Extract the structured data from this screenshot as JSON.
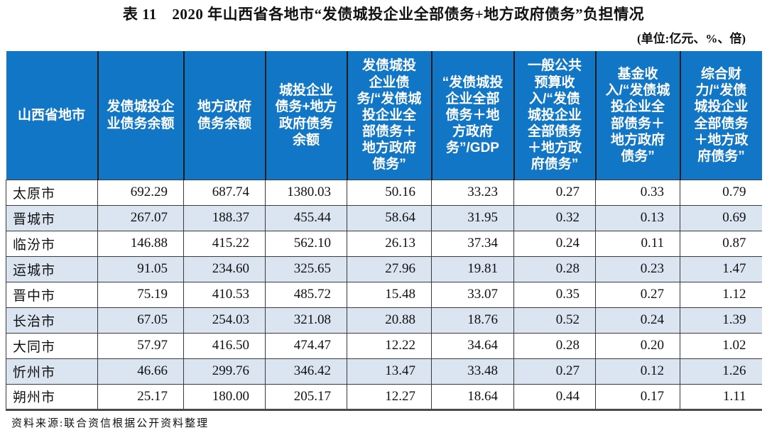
{
  "page": {
    "title": "表 11　2020 年山西省各地市“发债城投企业全部债务+地方政府债务”负担情况",
    "units_note": "(单位:亿元、%、倍)",
    "source_note": "资料来源:联合资信根据公开资料整理"
  },
  "colors": {
    "header_bg": "#1276c7",
    "header_text": "#ffffff",
    "row_alt_bg": "#dbe5f1",
    "grid_line": "#3a3a3a"
  },
  "table": {
    "columns": [
      "山西省地市",
      "发债城投企业债务余额",
      "地方政府债务余额",
      "城投企业债务+地方政府债务余额",
      "发债城投企业债务/“发债城投企业全部债务＋地方政府债务”",
      "“发债城投企业全部债务＋地方政府务”/GDP",
      "一般公共预算收入/“发债城投企业全部债务＋地方政府债务”",
      "基金收入/“发债城投企业全部债务＋地方政府债务”",
      "综合财力/“发债城投企业全部债务＋地方政府债务”"
    ],
    "rows": [
      [
        "太原市",
        "692.29",
        "687.74",
        "1380.03",
        "50.16",
        "33.23",
        "0.27",
        "0.33",
        "0.79"
      ],
      [
        "晋城市",
        "267.07",
        "188.37",
        "455.44",
        "58.64",
        "31.95",
        "0.32",
        "0.13",
        "0.69"
      ],
      [
        "临汾市",
        "146.88",
        "415.22",
        "562.10",
        "26.13",
        "37.34",
        "0.24",
        "0.11",
        "0.87"
      ],
      [
        "运城市",
        "91.05",
        "234.60",
        "325.65",
        "27.96",
        "19.81",
        "0.28",
        "0.23",
        "1.47"
      ],
      [
        "晋中市",
        "75.19",
        "410.53",
        "485.72",
        "15.48",
        "33.07",
        "0.35",
        "0.27",
        "1.12"
      ],
      [
        "长治市",
        "67.05",
        "254.03",
        "321.08",
        "20.88",
        "18.76",
        "0.52",
        "0.24",
        "1.39"
      ],
      [
        "大同市",
        "57.97",
        "416.50",
        "474.47",
        "12.22",
        "34.64",
        "0.28",
        "0.20",
        "1.02"
      ],
      [
        "忻州市",
        "46.66",
        "299.76",
        "346.42",
        "13.47",
        "33.48",
        "0.27",
        "0.12",
        "1.26"
      ],
      [
        "朔州市",
        "25.17",
        "180.00",
        "205.17",
        "12.27",
        "18.64",
        "0.44",
        "0.17",
        "1.11"
      ]
    ]
  }
}
